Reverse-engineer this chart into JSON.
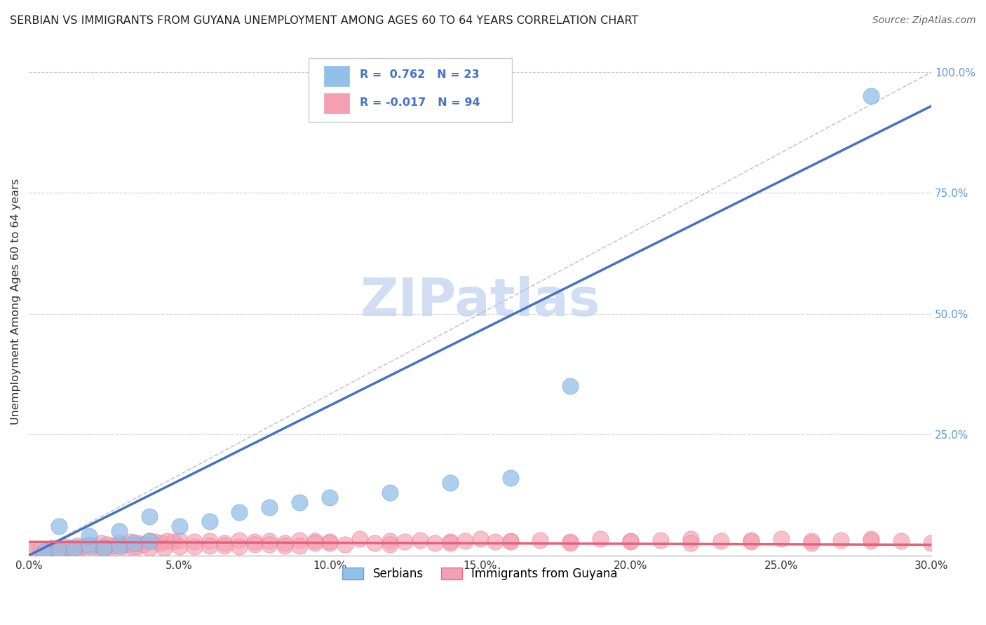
{
  "title": "SERBIAN VS IMMIGRANTS FROM GUYANA UNEMPLOYMENT AMONG AGES 60 TO 64 YEARS CORRELATION CHART",
  "source": "Source: ZipAtlas.com",
  "ylabel": "Unemployment Among Ages 60 to 64 years",
  "xlim": [
    0.0,
    0.3
  ],
  "ylim": [
    0.0,
    1.05
  ],
  "xticks": [
    0.0,
    0.05,
    0.1,
    0.15,
    0.2,
    0.25,
    0.3
  ],
  "yticks": [
    0.0,
    0.25,
    0.5,
    0.75,
    1.0
  ],
  "xticklabels": [
    "0.0%",
    "5.0%",
    "10.0%",
    "15.0%",
    "20.0%",
    "25.0%",
    "30.0%"
  ],
  "yticklabels_right": [
    "",
    "25.0%",
    "50.0%",
    "75.0%",
    "100.0%"
  ],
  "serbian_color": "#92C0E8",
  "serbian_edge_color": "#6AA0D4",
  "guyana_color": "#F4A0B0",
  "guyana_edge_color": "#E07090",
  "serbian_R": 0.762,
  "serbian_N": 23,
  "guyana_R": -0.017,
  "guyana_N": 94,
  "watermark": "ZIPatlas",
  "watermark_color": "#C8D8F0",
  "trend_serbian_color": "#4472C4",
  "trend_guyana_color": "#E8607A",
  "diag_color": "#BBBBBB",
  "legend_label_serbian": "Serbians",
  "legend_label_guyana": "Immigrants from Guyana",
  "serbian_points_x": [
    0.005,
    0.01,
    0.015,
    0.02,
    0.025,
    0.03,
    0.035,
    0.04,
    0.01,
    0.02,
    0.03,
    0.04,
    0.05,
    0.06,
    0.07,
    0.08,
    0.09,
    0.1,
    0.12,
    0.14,
    0.16,
    0.18,
    0.28
  ],
  "serbian_points_y": [
    0.008,
    0.01,
    0.015,
    0.02,
    0.015,
    0.02,
    0.025,
    0.03,
    0.06,
    0.04,
    0.05,
    0.08,
    0.06,
    0.07,
    0.09,
    0.1,
    0.11,
    0.12,
    0.13,
    0.15,
    0.16,
    0.35,
    0.95
  ],
  "guyana_points_x": [
    0.0,
    0.002,
    0.004,
    0.006,
    0.008,
    0.01,
    0.012,
    0.014,
    0.016,
    0.018,
    0.02,
    0.022,
    0.024,
    0.026,
    0.028,
    0.03,
    0.032,
    0.034,
    0.036,
    0.038,
    0.04,
    0.042,
    0.044,
    0.046,
    0.048,
    0.05,
    0.055,
    0.06,
    0.065,
    0.07,
    0.075,
    0.08,
    0.085,
    0.09,
    0.095,
    0.1,
    0.11,
    0.12,
    0.13,
    0.14,
    0.15,
    0.16,
    0.17,
    0.18,
    0.19,
    0.2,
    0.21,
    0.22,
    0.23,
    0.24,
    0.25,
    0.26,
    0.27,
    0.28,
    0.29,
    0.3,
    0.005,
    0.01,
    0.015,
    0.02,
    0.025,
    0.03,
    0.035,
    0.04,
    0.05,
    0.06,
    0.07,
    0.08,
    0.09,
    0.1,
    0.12,
    0.14,
    0.16,
    0.18,
    0.2,
    0.22,
    0.24,
    0.26,
    0.28,
    0.015,
    0.025,
    0.035,
    0.045,
    0.055,
    0.065,
    0.075,
    0.085,
    0.095,
    0.105,
    0.115,
    0.125,
    0.135,
    0.145,
    0.155
  ],
  "guyana_points_y": [
    0.01,
    0.008,
    0.012,
    0.01,
    0.015,
    0.012,
    0.018,
    0.015,
    0.02,
    0.018,
    0.022,
    0.02,
    0.025,
    0.022,
    0.02,
    0.025,
    0.022,
    0.028,
    0.025,
    0.022,
    0.03,
    0.028,
    0.025,
    0.03,
    0.028,
    0.032,
    0.028,
    0.03,
    0.025,
    0.032,
    0.028,
    0.03,
    0.025,
    0.032,
    0.03,
    0.028,
    0.035,
    0.03,
    0.032,
    0.028,
    0.035,
    0.03,
    0.032,
    0.028,
    0.035,
    0.03,
    0.032,
    0.035,
    0.03,
    0.032,
    0.035,
    0.03,
    0.032,
    0.035,
    0.03,
    0.025,
    0.005,
    0.008,
    0.01,
    0.012,
    0.015,
    0.012,
    0.018,
    0.015,
    0.018,
    0.02,
    0.018,
    0.022,
    0.02,
    0.025,
    0.022,
    0.025,
    0.028,
    0.025,
    0.028,
    0.025,
    0.028,
    0.025,
    0.03,
    0.008,
    0.01,
    0.012,
    0.015,
    0.018,
    0.02,
    0.022,
    0.02,
    0.025,
    0.022,
    0.025,
    0.028,
    0.025,
    0.03,
    0.028
  ]
}
